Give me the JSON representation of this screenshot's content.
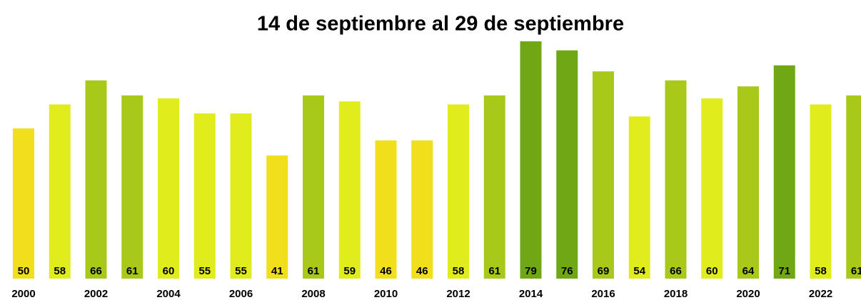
{
  "chart_data": {
    "type": "bar",
    "title": "14 de septiembre al 29 de septiembre",
    "categories": [
      "2000",
      null,
      "2002",
      null,
      "2004",
      null,
      "2006",
      null,
      "2008",
      null,
      "2010",
      null,
      "2012",
      null,
      "2014",
      null,
      "2016",
      null,
      "2018",
      null,
      "2020",
      null,
      "2022",
      null
    ],
    "values": [
      50,
      58,
      66,
      61,
      60,
      55,
      55,
      41,
      61,
      59,
      46,
      46,
      58,
      61,
      79,
      76,
      69,
      54,
      66,
      60,
      64,
      71,
      58,
      61
    ],
    "colors": [
      "#f0df1a",
      "#e0ec1c",
      "#a8c81a",
      "#a8c81a",
      "#e0ec1c",
      "#e0ec1c",
      "#e0ec1c",
      "#f0df1a",
      "#a8c81a",
      "#e0ec1c",
      "#f0df1a",
      "#f0df1a",
      "#e0ec1c",
      "#a8c81a",
      "#6fa814",
      "#6fa814",
      "#a8c81a",
      "#e0ec1c",
      "#a8c81a",
      "#e0ec1c",
      "#a8c81a",
      "#6fa814",
      "#e0ec1c",
      "#a8c81a"
    ]
  }
}
